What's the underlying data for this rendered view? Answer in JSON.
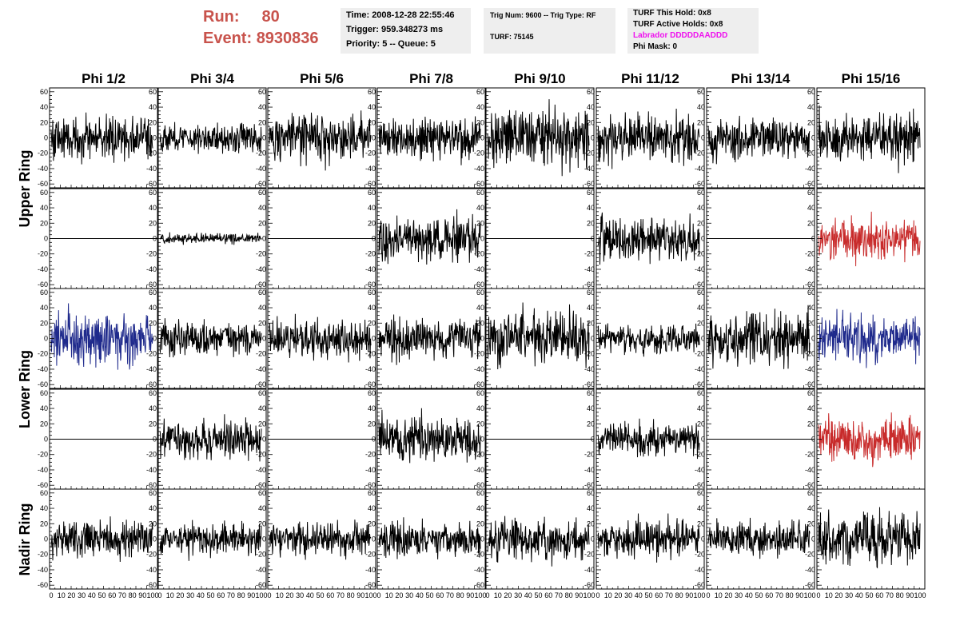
{
  "header": {
    "run_label": "Run:",
    "run_value": "80",
    "event_label": "Event:",
    "event_value": "8930836",
    "time_text": "Time: 2008-12-28 22:55:46",
    "trigger_text": "Trigger: 959.348273 ms",
    "priority_text": "Priority: 5 -- Queue: 5",
    "trig_num_text": "Trig Num: 9600 -- Trig Type: RF",
    "turf_text": "TURF: 75145",
    "turf_hold_text": "TURF This Hold: 0x8",
    "turf_active_text": "TURF Active Holds: 0x8",
    "labrador_text": "Labrador DDDDDAADDD",
    "phi_mask_text": "Phi Mask: 0"
  },
  "colors": {
    "run_text": "#c8534c",
    "labrador_text": "#ee11ee",
    "trace_black": "#000000",
    "trace_blue": "#1f2a8c",
    "trace_red": "#c82b2b",
    "panel_bg": "#eeeeee"
  },
  "chart_data": {
    "type": "line",
    "title": "",
    "column_titles": [
      "Phi 1/2",
      "Phi 3/4",
      "Phi 5/6",
      "Phi 7/8",
      "Phi 9/10",
      "Phi 11/12",
      "Phi 13/14",
      "Phi 15/16"
    ],
    "ring_labels": [
      "Upper Ring",
      "Lower Ring",
      "Nadir Ring"
    ],
    "xlim": [
      0,
      100
    ],
    "ylim": [
      -65,
      65
    ],
    "x_ticks": [
      0,
      10,
      20,
      30,
      40,
      50,
      60,
      70,
      80,
      90,
      100
    ],
    "x_tick_labels": [
      "0",
      "10",
      "20",
      "30",
      "40",
      "50",
      "60",
      "70",
      "80",
      "90",
      "100"
    ],
    "y_ticks": [
      -60,
      -40,
      -20,
      0,
      20,
      40,
      60
    ],
    "y_tick_labels": [
      "-60",
      "-40",
      "-20",
      "0",
      "20",
      "40",
      "60"
    ],
    "n_samples": 260,
    "rows": [
      [
        {
          "amp": 14,
          "color": "black"
        },
        {
          "amp": 9,
          "color": "black"
        },
        {
          "amp": 15,
          "color": "black"
        },
        {
          "amp": 14,
          "color": "black"
        },
        {
          "amp": 18,
          "color": "black"
        },
        {
          "amp": 14,
          "color": "black"
        },
        {
          "amp": 13,
          "color": "black"
        },
        {
          "amp": 17,
          "color": "black"
        }
      ],
      [
        {
          "amp": 0,
          "color": "black"
        },
        {
          "amp": 3,
          "color": "black"
        },
        {
          "amp": 0,
          "color": "black"
        },
        {
          "amp": 14,
          "color": "black"
        },
        {
          "amp": 0,
          "color": "black"
        },
        {
          "amp": 14,
          "color": "black"
        },
        {
          "amp": 0,
          "color": "black"
        },
        {
          "amp": 13,
          "color": "red"
        }
      ],
      [
        {
          "amp": 16,
          "color": "blue"
        },
        {
          "amp": 11,
          "color": "black"
        },
        {
          "amp": 12,
          "color": "black"
        },
        {
          "amp": 13,
          "color": "black"
        },
        {
          "amp": 17,
          "color": "black"
        },
        {
          "amp": 9,
          "color": "black"
        },
        {
          "amp": 16,
          "color": "black"
        },
        {
          "amp": 15,
          "color": "blue"
        }
      ],
      [
        {
          "amp": 0,
          "color": "black"
        },
        {
          "amp": 12,
          "color": "black"
        },
        {
          "amp": 0,
          "color": "black"
        },
        {
          "amp": 14,
          "color": "black"
        },
        {
          "amp": 0,
          "color": "black"
        },
        {
          "amp": 11,
          "color": "black"
        },
        {
          "amp": 0,
          "color": "black"
        },
        {
          "amp": 14,
          "color": "red"
        }
      ],
      [
        {
          "amp": 12,
          "color": "black"
        },
        {
          "amp": 10,
          "color": "black"
        },
        {
          "amp": 10,
          "color": "black"
        },
        {
          "amp": 11,
          "color": "black"
        },
        {
          "amp": 13,
          "color": "black"
        },
        {
          "amp": 13,
          "color": "black"
        },
        {
          "amp": 11,
          "color": "black"
        },
        {
          "amp": 16,
          "color": "black"
        }
      ]
    ]
  }
}
